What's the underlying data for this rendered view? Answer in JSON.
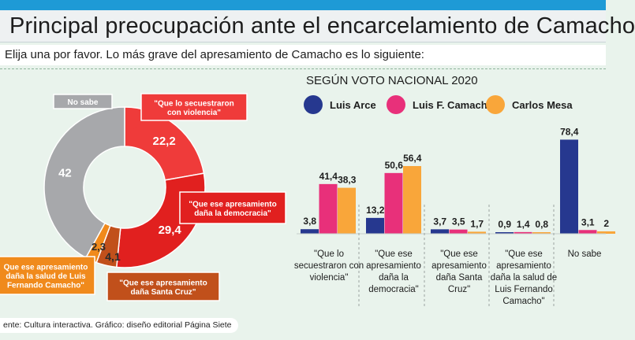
{
  "header": {
    "title": "Principal preocupación ante el encarcelamiento de Camacho",
    "question": "Elija una por favor. Lo más grave del apresamiento de Camacho es lo siguiente:"
  },
  "source": "ente: Cultura interactiva. Gráfico: diseño editorial Página Siete",
  "chart_data": [
    {
      "type": "pie",
      "title": "",
      "slices": [
        {
          "label": "\"Que lo secuestraron con violencia\"",
          "value": 22.2,
          "value_label": "22,2",
          "color": "#ef3b3a"
        },
        {
          "label": "\"Que ese apresamiento daña la democracia\"",
          "value": 29.4,
          "value_label": "29,4",
          "color": "#e1201f"
        },
        {
          "label": "\"Que ese apresamiento daña Santa Cruz\"",
          "value": 4.1,
          "value_label": "4,1",
          "color": "#c1501b"
        },
        {
          "label": "\"Que ese apresamiento daña la salud de Luis Fernando Camacho\"",
          "value": 2.3,
          "value_label": "2,3",
          "color": "#f08a1c"
        },
        {
          "label": "No sabe",
          "value": 42,
          "value_label": "42",
          "color": "#a7a8ab"
        }
      ]
    },
    {
      "type": "bar",
      "title": "SEGÚN VOTO NACIONAL 2020",
      "categories": [
        "\"Que lo secuestraron con violencia\"",
        "\"Que ese apresamiento daña la democracia\"",
        "\"Que ese apresamiento daña Santa Cruz\"",
        "\"Que ese apresamiento daña la salud de Luis Fernando Camacho\"",
        "No sabe"
      ],
      "series": [
        {
          "name": "Luis Arce",
          "color": "#26388f",
          "values": [
            3.8,
            13.2,
            3.7,
            0.9,
            78.4
          ],
          "labels": [
            "3,8",
            "13,2",
            "3,7",
            "0,9",
            "78,4"
          ]
        },
        {
          "name": "Luis F. Camacho",
          "color": "#e8307a",
          "values": [
            41.4,
            50.6,
            3.5,
            1.4,
            3.1
          ],
          "labels": [
            "41,4",
            "50,6",
            "3,5",
            "1,4",
            "3,1"
          ]
        },
        {
          "name": "Carlos Mesa",
          "color": "#f9a63a",
          "values": [
            38.3,
            56.4,
            1.7,
            0.8,
            2
          ],
          "labels": [
            "38,3",
            "56,4",
            "1,7",
            "0,8",
            "2"
          ]
        }
      ],
      "legend_position": "top"
    }
  ],
  "display": {
    "pie_callouts": [
      [
        "No sabe"
      ],
      [
        "\"Que lo secuestraron",
        "con violencia\""
      ],
      [
        "\"Que ese apresamiento",
        "daña la democracia\""
      ],
      [
        "\"Que ese apresamiento",
        "daña Santa Cruz\""
      ],
      [
        "Que ese apresamiento",
        "daña la salud de Luis",
        "Fernando Camacho\""
      ]
    ],
    "bar_category_lines": [
      [
        "\"Que lo",
        "secuestraron con",
        "violencia\""
      ],
      [
        "\"Que ese",
        "apresamiento",
        "daña la",
        "democracia\""
      ],
      [
        "\"Que ese",
        "apresamiento",
        "daña Santa",
        "Cruz\""
      ],
      [
        "\"Que ese",
        "apresamiento",
        "daña la salud de",
        "Luis Fernando",
        "Camacho\""
      ],
      [
        "No sabe"
      ]
    ]
  }
}
